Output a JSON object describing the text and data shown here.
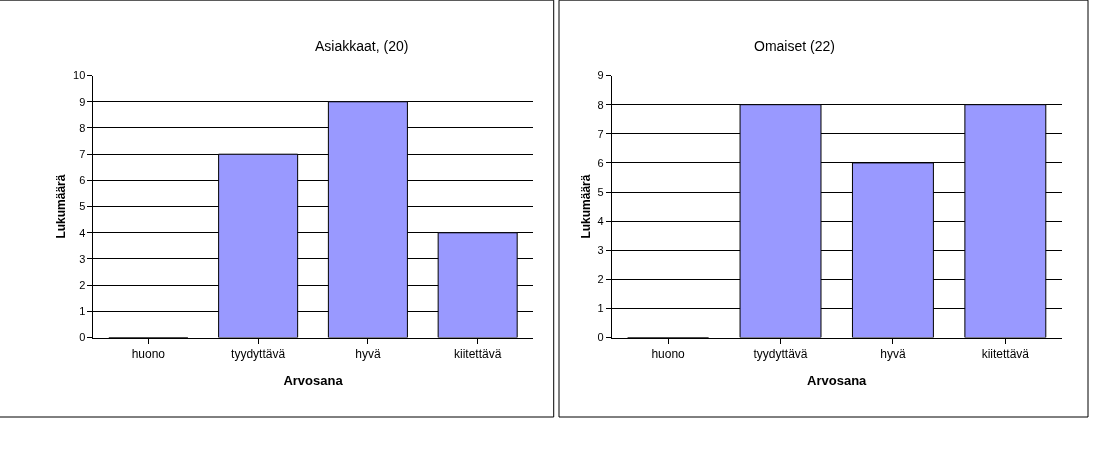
{
  "chart_data": [
    {
      "type": "bar",
      "title": "Asiakkaat, (20)",
      "xlabel": "Arvosana",
      "ylabel": "Lukumäärä",
      "categories": [
        "huono",
        "tyydyttävä",
        "hyvä",
        "kiitettävä"
      ],
      "values": [
        0,
        7,
        9,
        4
      ],
      "color": "#9999ff",
      "ylim": [
        0,
        10
      ],
      "yticks": [
        0,
        1,
        2,
        3,
        4,
        5,
        6,
        7,
        8,
        9,
        10
      ],
      "grid": "y"
    },
    {
      "type": "bar",
      "title": "Omaiset (22)",
      "xlabel": "Arvosana",
      "ylabel": "Lukumäärä",
      "categories": [
        "huono",
        "tyydyttävä",
        "hyvä",
        "kiitettävä"
      ],
      "values": [
        0,
        8,
        6,
        8
      ],
      "color": "#9999ff",
      "ylim": [
        0,
        9
      ],
      "yticks": [
        0,
        1,
        2,
        3,
        4,
        5,
        6,
        7,
        8,
        9
      ],
      "grid": "y"
    }
  ]
}
